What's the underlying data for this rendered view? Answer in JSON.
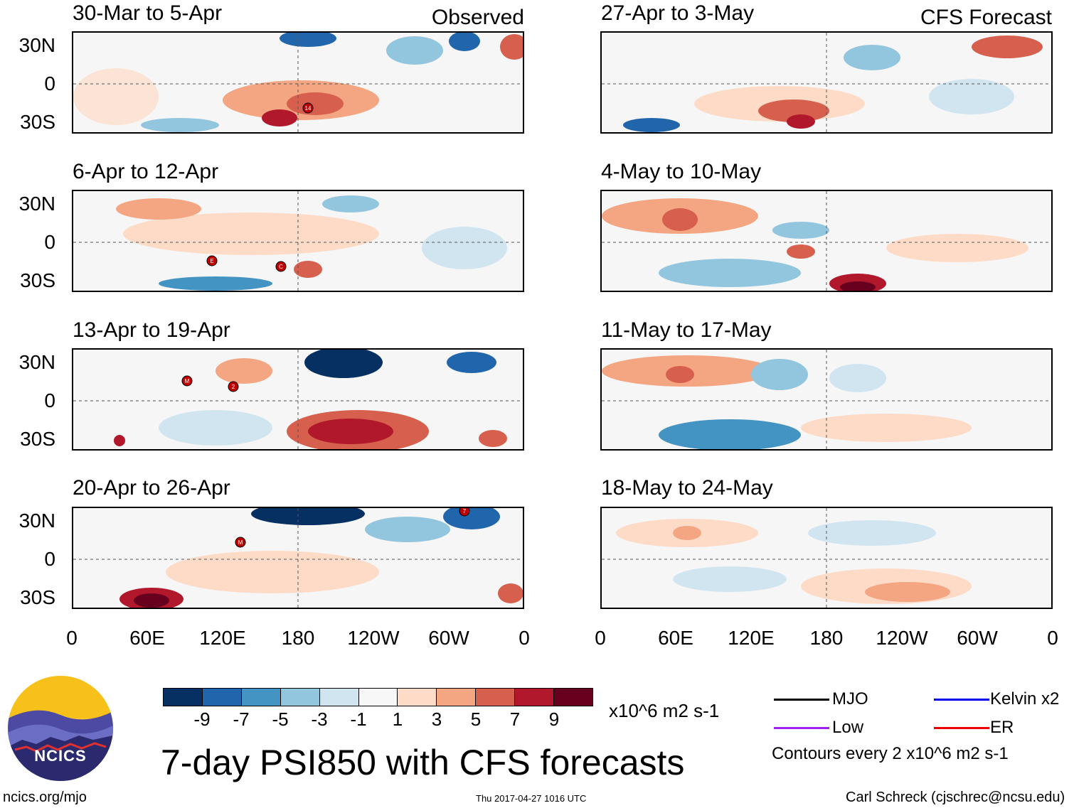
{
  "left_header": "Observed",
  "right_header": "CFS Forecast",
  "panels_left": [
    {
      "title": "30-Mar to 5-Apr"
    },
    {
      "title": "6-Apr to 12-Apr"
    },
    {
      "title": "13-Apr to 19-Apr"
    },
    {
      "title": "20-Apr to 26-Apr"
    }
  ],
  "panels_right": [
    {
      "title": "27-Apr to 3-May"
    },
    {
      "title": "4-May to 10-May"
    },
    {
      "title": "11-May to 17-May"
    },
    {
      "title": "18-May to 24-May"
    }
  ],
  "lat_labels": [
    "30N",
    "0",
    "30S"
  ],
  "lon_labels": [
    "0",
    "60E",
    "120E",
    "180",
    "120W",
    "60W",
    "0"
  ],
  "storm_markers": [
    "14",
    "E",
    "C",
    "M",
    "2",
    "M",
    "7"
  ],
  "colorbar": {
    "ticks": [
      "-9",
      "-7",
      "-5",
      "-3",
      "-1",
      "1",
      "3",
      "5",
      "7",
      "9"
    ],
    "colors": [
      "#053061",
      "#2166ac",
      "#4393c3",
      "#92c5de",
      "#d1e5f0",
      "#f7f7f7",
      "#fddbc7",
      "#f4a582",
      "#d6604d",
      "#b2182b",
      "#67001f"
    ],
    "units": "x10^6 m2 s-1"
  },
  "legend": {
    "items": [
      {
        "label": "MJO",
        "color": "#000000"
      },
      {
        "label": "Kelvin x2",
        "color": "#0000ee"
      },
      {
        "label": "Low",
        "color": "#a020f0"
      },
      {
        "label": "ER",
        "color": "#ee0000"
      }
    ],
    "note": "Contours every 2 x10^6 m2 s-1"
  },
  "title": "7-day PSI850 with CFS forecasts",
  "logo_text": "NCICS",
  "footer": {
    "left": "ncics.org/mjo",
    "center": "Thu 2017-04-27 1016 UTC",
    "right": "Carl Schreck (cjschrec@ncsu.edu)"
  }
}
